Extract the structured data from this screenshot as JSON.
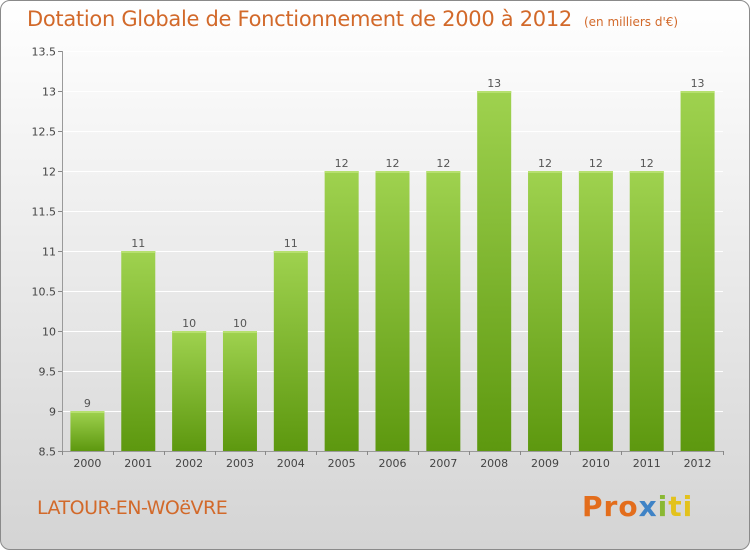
{
  "header": {
    "title": "Dotation Globale de Fonctionnement de 2000 à 2012",
    "unit": "(en milliers d'€)"
  },
  "footer": {
    "commune": "LATOUR-EN-WOëVRE",
    "logo": [
      "Pro",
      "x",
      "i",
      "ti"
    ]
  },
  "colors": {
    "title": "#d2692a",
    "bar_light": "#9fd24f",
    "bar_dark": "#5d980f",
    "grid": "#ffffff"
  },
  "chart_data": {
    "type": "bar",
    "categories": [
      "2000",
      "2001",
      "2002",
      "2003",
      "2004",
      "2005",
      "2006",
      "2007",
      "2008",
      "2009",
      "2010",
      "2011",
      "2012"
    ],
    "values": [
      9,
      11,
      10,
      10,
      11,
      12,
      12,
      12,
      13,
      12,
      12,
      12,
      13
    ],
    "data_labels": [
      "9",
      "11",
      "10",
      "10",
      "11",
      "12",
      "12",
      "12",
      "13",
      "12",
      "12",
      "12",
      "13"
    ],
    "yticks": [
      "8.5",
      "9",
      "9.5",
      "10",
      "10.5",
      "11",
      "11.5",
      "12",
      "12.5",
      "13",
      "13.5"
    ],
    "ylim": [
      8.5,
      13.5
    ],
    "grid": true,
    "legend": "none"
  }
}
